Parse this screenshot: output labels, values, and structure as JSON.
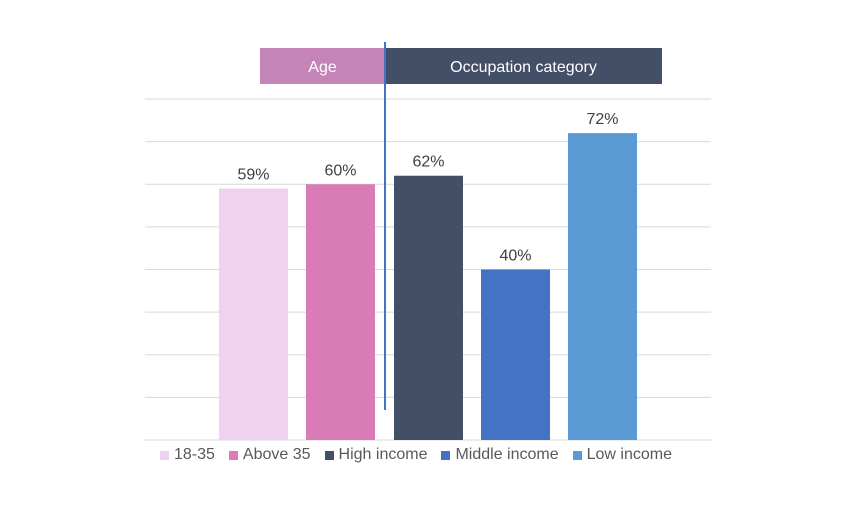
{
  "chart_data": {
    "type": "bar",
    "categories": [
      "18-35",
      "Above 35",
      "High income",
      "Middle income",
      "Low income"
    ],
    "values": [
      59,
      60,
      62,
      40,
      72
    ],
    "value_labels": [
      "59%",
      "60%",
      "62%",
      "40%",
      "72%"
    ],
    "colors": [
      "#f0d2f0",
      "#d97bb6",
      "#434f66",
      "#4472c4",
      "#5b9bd5"
    ],
    "groups": [
      {
        "label": "Age",
        "categories": [
          "18-35",
          "Above 35"
        ],
        "color": "#c584b7"
      },
      {
        "label": "Occupation category",
        "categories": [
          "High income",
          "Middle income",
          "Low income"
        ],
        "color": "#434f66"
      }
    ],
    "ylim": [
      0,
      80
    ],
    "y_gridline_step": 10,
    "grid": true,
    "legend_position": "bottom",
    "title": "",
    "xlabel": "",
    "ylabel": ""
  }
}
